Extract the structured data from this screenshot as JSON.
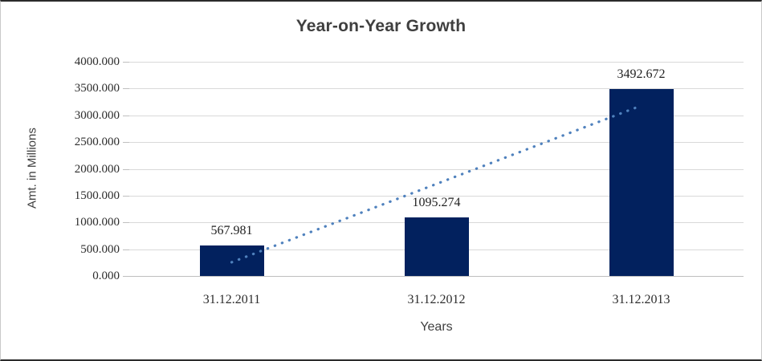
{
  "window": {
    "background": "#ffffff",
    "border_dark": "#2b2b2b",
    "border_light": "#c9c9c9"
  },
  "chart_data": {
    "type": "bar",
    "title": "Year-on-Year Growth",
    "xlabel": "Years",
    "ylabel": "Amt. in Millions",
    "categories": [
      "31.12.2011",
      "31.12.2012",
      "31.12.2013"
    ],
    "values": [
      567.981,
      1095.274,
      3492.672
    ],
    "data_labels": [
      "567.981",
      "1095.274",
      "3492.672"
    ],
    "ylim": [
      0,
      4000
    ],
    "ytick_step": 500,
    "ytick_labels": [
      "0.000",
      "500.000",
      "1000.000",
      "1500.000",
      "2000.000",
      "2500.000",
      "3000.000",
      "3500.000",
      "4000.000"
    ],
    "grid": "horizontal",
    "legend": "none",
    "bar_color": "#02215E",
    "gridline_color": "#d9d9d9",
    "axis_line_color": "#bfbfbf",
    "title_color": "#3f3f3f",
    "trendline": {
      "type": "linear",
      "style": "dotted",
      "color": "#4F81BD",
      "start_value": 256,
      "end_value": 3181
    }
  }
}
